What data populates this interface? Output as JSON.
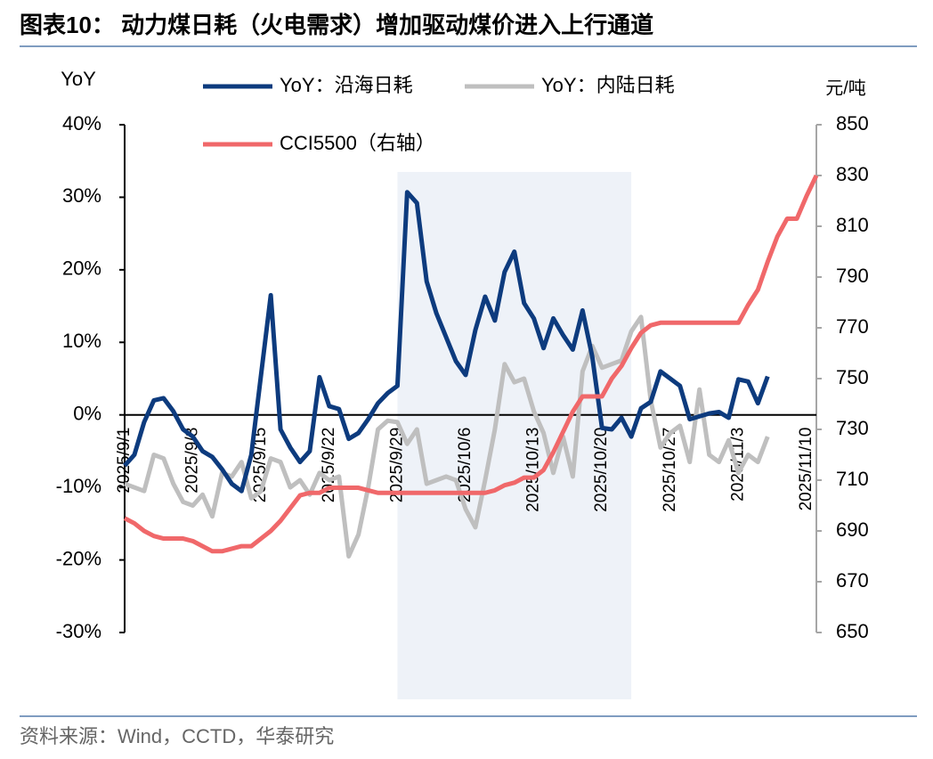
{
  "chart_data": {
    "type": "line",
    "title": "图表10：  动力煤日耗（火电需求）增加驱动煤价进入上行通道",
    "source": "资料来源：Wind，CCTD，华泰研究",
    "y_label": "YoY",
    "y2_label": "元/吨",
    "x": [
      "2025/9/1",
      "2025/9/2",
      "2025/9/3",
      "2025/9/4",
      "2025/9/5",
      "2025/9/6",
      "2025/9/7",
      "2025/9/8",
      "2025/9/9",
      "2025/9/10",
      "2025/9/11",
      "2025/9/12",
      "2025/9/13",
      "2025/9/14",
      "2025/9/15",
      "2025/9/16",
      "2025/9/17",
      "2025/9/18",
      "2025/9/19",
      "2025/9/20",
      "2025/9/21",
      "2025/9/22",
      "2025/9/23",
      "2025/9/24",
      "2025/9/25",
      "2025/9/26",
      "2025/9/27",
      "2025/9/28",
      "2025/9/29",
      "2025/9/30",
      "2025/10/1",
      "2025/10/2",
      "2025/10/3",
      "2025/10/4",
      "2025/10/5",
      "2025/10/6",
      "2025/10/7",
      "2025/10/8",
      "2025/10/9",
      "2025/10/10",
      "2025/10/11",
      "2025/10/12",
      "2025/10/13",
      "2025/10/14",
      "2025/10/15",
      "2025/10/16",
      "2025/10/17",
      "2025/10/18",
      "2025/10/19",
      "2025/10/20",
      "2025/10/21",
      "2025/10/22",
      "2025/10/23",
      "2025/10/24",
      "2025/10/25",
      "2025/10/26",
      "2025/10/27",
      "2025/10/28",
      "2025/10/29",
      "2025/10/30",
      "2025/10/31",
      "2025/11/1",
      "2025/11/2",
      "2025/11/3",
      "2025/11/4",
      "2025/11/5",
      "2025/11/6",
      "2025/11/7",
      "2025/11/8",
      "2025/11/9",
      "2025/11/10",
      "2025/11/11"
    ],
    "xlim": [
      "2025/9/1",
      "2025/11/11"
    ],
    "xticks": [
      "2025/9/1",
      "2025/9/8",
      "2025/9/15",
      "2025/9/22",
      "2025/9/29",
      "2025/10/6",
      "2025/10/13",
      "2025/10/20",
      "2025/10/27",
      "2025/11/3",
      "2025/11/10"
    ],
    "shaded_x": [
      "2025/9/29",
      "2025/10/23"
    ],
    "ylim": [
      -30,
      40
    ],
    "yticks": [
      {
        "value": -30,
        "label": "-30%"
      },
      {
        "value": -20,
        "label": "-20%"
      },
      {
        "value": -10,
        "label": "-10%"
      },
      {
        "value": 0,
        "label": "0%"
      },
      {
        "value": 10,
        "label": "10%"
      },
      {
        "value": 20,
        "label": "20%"
      },
      {
        "value": 30,
        "label": "30%"
      },
      {
        "value": 40,
        "label": "40%"
      }
    ],
    "y2lim": [
      650,
      850
    ],
    "y2ticks": [
      650,
      670,
      690,
      710,
      730,
      750,
      770,
      790,
      810,
      830,
      850
    ],
    "series": [
      {
        "name": "YoY：沿海日耗",
        "color": "#0d3b7e",
        "values": [
          -7,
          -5.5,
          -1,
          2,
          2.3,
          0.5,
          -2,
          -3,
          -5,
          -5.8,
          -7.5,
          -9.5,
          -10.5,
          -5.5,
          5.5,
          16.5,
          -2,
          -4.5,
          -6.5,
          -5,
          5.2,
          1.2,
          0.8,
          -3.3,
          -2.5,
          -0.6,
          1.6,
          3,
          4,
          30.7,
          29.2,
          18.4,
          14,
          10.7,
          7.4,
          5.5,
          11.7,
          16.3,
          13,
          19.7,
          22.5,
          15.4,
          13.3,
          9.2,
          13.3,
          11,
          9,
          14.4,
          8,
          -1.8,
          -2,
          -0.4,
          -3,
          0.9,
          1.8,
          6,
          5,
          4,
          -0.6,
          -0.2,
          0.2,
          0.4,
          -0.4,
          4.9,
          4.6,
          1.6,
          5.3,
          null,
          null,
          null,
          null,
          null
        ]
      },
      {
        "name": "YoY：内陆日耗",
        "color": "#bfbfbf",
        "values": [
          -9.5,
          -10,
          -10.5,
          -5.5,
          -6,
          -9.5,
          -12,
          -12.5,
          -11,
          -14,
          -8,
          -8.5,
          -6.5,
          -11.5,
          -10.5,
          -6,
          -6.5,
          -10,
          -9,
          -11,
          -8,
          -9,
          -8.5,
          -19.5,
          -16.5,
          -10,
          -2,
          -0.8,
          -1,
          -4,
          -2,
          -9.5,
          -9,
          -8.5,
          -9,
          -13,
          -15.5,
          -9,
          -2,
          7,
          4.5,
          5,
          0.5,
          -2.5,
          -8,
          -3,
          -8.5,
          6,
          9.5,
          6.5,
          7,
          7.5,
          11.5,
          13.5,
          2,
          -4.5,
          -2.5,
          -1.5,
          -6.5,
          3.5,
          -5.5,
          -6.5,
          -3.5,
          -8,
          -5.5,
          -6.5,
          -3,
          null,
          null,
          null,
          null,
          null
        ]
      },
      {
        "name": "CCI5500（右轴）",
        "color": "#f0686a",
        "axis": "y2",
        "values": [
          695,
          693,
          690,
          688,
          687,
          687,
          687,
          686,
          684,
          682,
          682,
          683,
          684,
          684,
          687,
          690,
          694,
          699,
          704,
          705,
          705,
          707,
          707,
          707,
          707,
          706,
          705,
          705,
          705,
          705,
          705,
          705,
          705,
          705,
          705,
          705,
          705,
          705,
          706,
          708,
          709,
          711,
          711,
          714,
          721,
          729,
          737,
          743,
          743,
          743,
          750,
          755,
          762,
          768,
          771,
          772,
          772,
          772,
          772,
          772,
          772,
          772,
          772,
          772,
          779,
          785,
          796,
          806,
          813,
          813,
          822,
          830
        ]
      }
    ]
  }
}
